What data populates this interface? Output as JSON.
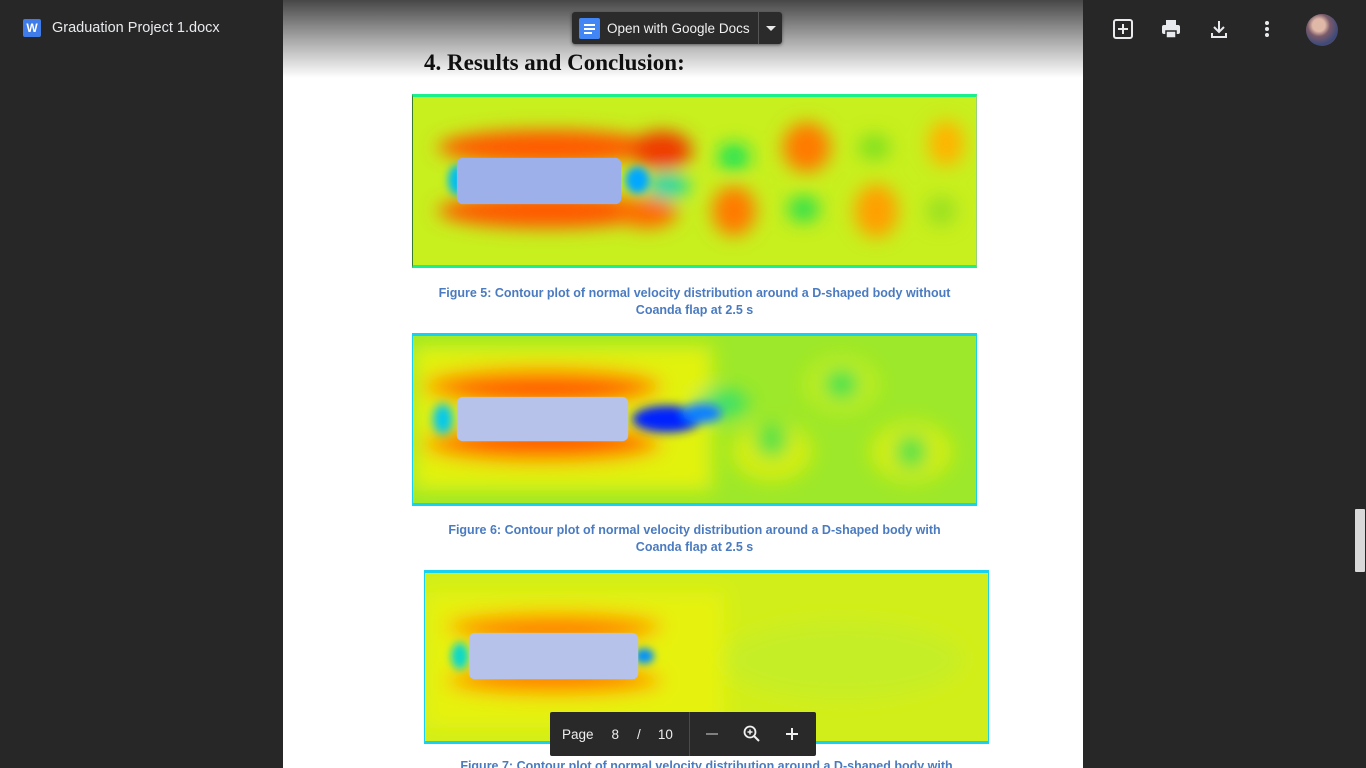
{
  "window": {
    "file_name": "Graduation Project 1.docx",
    "file_type_badge": "W",
    "open_button_label": "Open with Google Docs"
  },
  "toolbar": {
    "actions": [
      "add-to-drive-icon",
      "print-icon",
      "download-icon",
      "more-vert-icon"
    ]
  },
  "document": {
    "heading": "4. Results and Conclusion:",
    "figures": [
      {
        "caption_line1": "Figure 5: Contour plot of normal velocity distribution around a D-shaped body without",
        "caption_line2": "Coanda flap at 2.5 s"
      },
      {
        "caption_line1": "Figure 6: Contour plot of normal velocity distribution around a    D-shaped body with",
        "caption_line2": "Coanda flap at 2.5 s"
      },
      {
        "caption_line1": "Figure 7: Contour plot of normal velocity distribution around a D-shaped body with"
      }
    ]
  },
  "page_nav": {
    "label": "Page",
    "current": "8",
    "separator": "/",
    "total": "10"
  },
  "colors": {
    "background": "#272727",
    "caption": "#4a7bc0",
    "accent_docs": "#4285f4"
  }
}
